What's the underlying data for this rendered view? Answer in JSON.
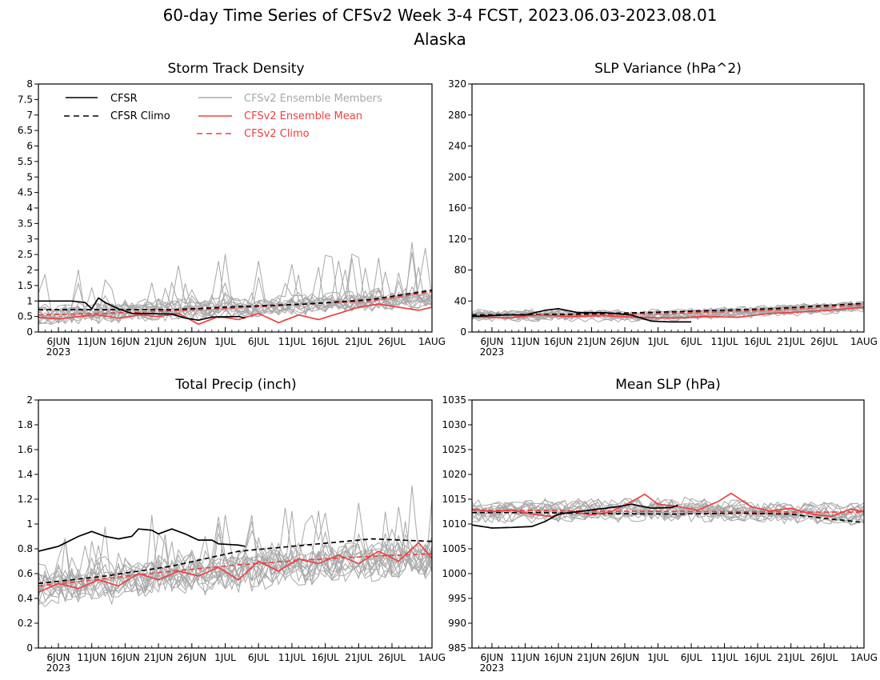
{
  "figure": {
    "title_line1": "60-day Time Series of CFSv2 Week 3-4 FCST, 2023.06.03-2023.08.01",
    "title_line2": "Alaska"
  },
  "colors": {
    "cfsr": "#000000",
    "ensemble_members": "#a8a8a8",
    "ensemble_mean": "#ee4040",
    "cfsv2_climo": "#ee4040",
    "axis": "#000000"
  },
  "legend": {
    "placement": "top-left of Storm Track Density panel",
    "entries": [
      {
        "label": "CFSR",
        "style": "solid",
        "color": "#000000"
      },
      {
        "label": "CFSR Climo",
        "style": "dashed",
        "color": "#000000"
      },
      {
        "label": "CFSv2 Ensemble Members",
        "style": "solid",
        "color": "#a8a8a8"
      },
      {
        "label": "CFSv2 Ensemble Mean",
        "style": "solid",
        "color": "#ee4040"
      },
      {
        "label": "CFSv2 Climo",
        "style": "dashed",
        "color": "#ee4040"
      }
    ]
  },
  "chart_data": [
    {
      "type": "line",
      "title": "Storm Track Density",
      "x_range": [
        "2023-06-03",
        "2023-08-01"
      ],
      "x_tick_labels": [
        "6JUN",
        "11JUN",
        "16JUN",
        "21JUN",
        "26JUN",
        "1JUL",
        "6JUL",
        "11JUL",
        "16JUL",
        "21JUL",
        "26JUL",
        "1AUG"
      ],
      "x_tick_days": [
        3,
        8,
        13,
        18,
        23,
        28,
        33,
        38,
        43,
        48,
        53,
        59
      ],
      "year_label": "2023",
      "ylim": [
        0,
        8
      ],
      "y_ticks": [
        "0",
        "0.5",
        "1",
        "1.5",
        "2",
        "2.5",
        "3",
        "3.5",
        "4",
        "4.5",
        "5",
        "5.5",
        "6",
        "6.5",
        "7",
        "7.5",
        "8"
      ],
      "grid": false,
      "member_count": 16,
      "series": [
        {
          "name": "CFSR",
          "knots": [
            [
              0,
              1.0
            ],
            [
              5,
              1.0
            ],
            [
              7,
              0.95
            ],
            [
              8,
              0.75
            ],
            [
              9,
              1.1
            ],
            [
              10,
              0.95
            ],
            [
              12,
              0.75
            ],
            [
              14,
              0.6
            ],
            [
              20,
              0.58
            ],
            [
              22,
              0.45
            ],
            [
              24,
              0.38
            ],
            [
              26,
              0.48
            ],
            [
              30,
              0.5
            ],
            [
              31,
              0.45
            ]
          ]
        },
        {
          "name": "CFSR Climo",
          "knots": [
            [
              0,
              0.72
            ],
            [
              10,
              0.72
            ],
            [
              20,
              0.72
            ],
            [
              30,
              0.82
            ],
            [
              40,
              0.9
            ],
            [
              50,
              1.05
            ],
            [
              59,
              1.35
            ]
          ]
        },
        {
          "name": "CFSv2 Ensemble Mean",
          "knots": [
            [
              0,
              0.48
            ],
            [
              3,
              0.42
            ],
            [
              6,
              0.5
            ],
            [
              9,
              0.55
            ],
            [
              12,
              0.45
            ],
            [
              15,
              0.55
            ],
            [
              18,
              0.5
            ],
            [
              21,
              0.6
            ],
            [
              24,
              0.25
            ],
            [
              27,
              0.5
            ],
            [
              30,
              0.4
            ],
            [
              33,
              0.6
            ],
            [
              36,
              0.3
            ],
            [
              39,
              0.55
            ],
            [
              42,
              0.4
            ],
            [
              45,
              0.6
            ],
            [
              48,
              0.8
            ],
            [
              51,
              0.9
            ],
            [
              54,
              0.8
            ],
            [
              57,
              0.7
            ],
            [
              59,
              0.8
            ]
          ]
        },
        {
          "name": "CFSv2 Climo",
          "knots": [
            [
              0,
              0.55
            ],
            [
              10,
              0.6
            ],
            [
              20,
              0.68
            ],
            [
              30,
              0.78
            ],
            [
              40,
              0.9
            ],
            [
              50,
              1.0
            ],
            [
              59,
              1.3
            ]
          ]
        }
      ],
      "member_envelope": {
        "knots": [
          [
            0,
            0.55
          ],
          [
            30,
            0.78
          ],
          [
            59,
            1.1
          ]
        ],
        "spread": 0.55
      }
    },
    {
      "type": "line",
      "title": "SLP Variance (hPa^2)",
      "x_range": [
        "2023-06-03",
        "2023-08-01"
      ],
      "x_tick_labels": [
        "6JUN",
        "11JUN",
        "16JUN",
        "21JUN",
        "26JUN",
        "1JUL",
        "6JUL",
        "11JUL",
        "16JUL",
        "21JUL",
        "26JUL",
        "1AUG"
      ],
      "x_tick_days": [
        3,
        8,
        13,
        18,
        23,
        28,
        33,
        38,
        43,
        48,
        53,
        59
      ],
      "year_label": "2023",
      "ylim": [
        0,
        320
      ],
      "y_ticks": [
        "0",
        "40",
        "80",
        "120",
        "160",
        "200",
        "240",
        "280",
        "320"
      ],
      "grid": false,
      "member_count": 16,
      "series": [
        {
          "name": "CFSR",
          "knots": [
            [
              0,
              20
            ],
            [
              5,
              22
            ],
            [
              8,
              22
            ],
            [
              11,
              28
            ],
            [
              13,
              30
            ],
            [
              16,
              25
            ],
            [
              20,
              25
            ],
            [
              24,
              22
            ],
            [
              27,
              14
            ],
            [
              30,
              13
            ],
            [
              33,
              13
            ]
          ]
        },
        {
          "name": "CFSR Climo",
          "knots": [
            [
              0,
              22
            ],
            [
              15,
              23
            ],
            [
              30,
              26
            ],
            [
              45,
              30
            ],
            [
              59,
              37
            ]
          ]
        },
        {
          "name": "CFSv2 Ensemble Mean",
          "knots": [
            [
              0,
              20
            ],
            [
              5,
              18
            ],
            [
              10,
              22
            ],
            [
              15,
              20
            ],
            [
              20,
              21
            ],
            [
              25,
              19
            ],
            [
              30,
              18
            ],
            [
              35,
              20
            ],
            [
              40,
              19
            ],
            [
              45,
              24
            ],
            [
              50,
              26
            ],
            [
              55,
              29
            ],
            [
              59,
              32
            ]
          ]
        },
        {
          "name": "CFSv2 Climo",
          "knots": [
            [
              0,
              22
            ],
            [
              15,
              22
            ],
            [
              30,
              24
            ],
            [
              45,
              28
            ],
            [
              59,
              35
            ]
          ]
        }
      ],
      "member_envelope": {
        "knots": [
          [
            0,
            21
          ],
          [
            30,
            21
          ],
          [
            59,
            33
          ]
        ],
        "spread": 12
      }
    },
    {
      "type": "line",
      "title": "Total Precip (inch)",
      "x_range": [
        "2023-06-03",
        "2023-08-01"
      ],
      "x_tick_labels": [
        "6JUN",
        "11JUN",
        "16JUN",
        "21JUN",
        "26JUN",
        "1JUL",
        "6JUL",
        "11JUL",
        "16JUL",
        "21JUL",
        "26JUL",
        "1AUG"
      ],
      "x_tick_days": [
        3,
        8,
        13,
        18,
        23,
        28,
        33,
        38,
        43,
        48,
        53,
        59
      ],
      "year_label": "2023",
      "ylim": [
        0,
        2
      ],
      "y_ticks": [
        "0",
        "0.2",
        "0.4",
        "0.6",
        "0.8",
        "1",
        "1.2",
        "1.4",
        "1.6",
        "1.8",
        "2"
      ],
      "grid": false,
      "member_count": 16,
      "series": [
        {
          "name": "CFSR",
          "knots": [
            [
              0,
              0.78
            ],
            [
              3,
              0.82
            ],
            [
              6,
              0.9
            ],
            [
              8,
              0.94
            ],
            [
              10,
              0.9
            ],
            [
              12,
              0.88
            ],
            [
              14,
              0.9
            ],
            [
              15,
              0.96
            ],
            [
              17,
              0.95
            ],
            [
              18,
              0.92
            ],
            [
              20,
              0.96
            ],
            [
              22,
              0.92
            ],
            [
              24,
              0.87
            ],
            [
              26,
              0.87
            ],
            [
              27,
              0.84
            ],
            [
              30,
              0.83
            ],
            [
              31,
              0.82
            ]
          ]
        },
        {
          "name": "CFSR Climo",
          "knots": [
            [
              0,
              0.52
            ],
            [
              10,
              0.58
            ],
            [
              20,
              0.66
            ],
            [
              25,
              0.72
            ],
            [
              30,
              0.78
            ],
            [
              40,
              0.83
            ],
            [
              50,
              0.88
            ],
            [
              59,
              0.86
            ]
          ]
        },
        {
          "name": "CFSv2 Ensemble Mean",
          "knots": [
            [
              0,
              0.45
            ],
            [
              3,
              0.52
            ],
            [
              6,
              0.48
            ],
            [
              9,
              0.55
            ],
            [
              12,
              0.5
            ],
            [
              15,
              0.6
            ],
            [
              18,
              0.55
            ],
            [
              21,
              0.62
            ],
            [
              24,
              0.58
            ],
            [
              27,
              0.65
            ],
            [
              30,
              0.55
            ],
            [
              33,
              0.7
            ],
            [
              36,
              0.62
            ],
            [
              39,
              0.72
            ],
            [
              42,
              0.68
            ],
            [
              45,
              0.75
            ],
            [
              48,
              0.68
            ],
            [
              51,
              0.78
            ],
            [
              54,
              0.7
            ],
            [
              57,
              0.85
            ],
            [
              59,
              0.72
            ]
          ]
        },
        {
          "name": "CFSv2 Climo",
          "knots": [
            [
              0,
              0.5
            ],
            [
              10,
              0.56
            ],
            [
              20,
              0.62
            ],
            [
              30,
              0.67
            ],
            [
              40,
              0.71
            ],
            [
              50,
              0.74
            ],
            [
              59,
              0.76
            ]
          ]
        }
      ],
      "member_envelope": {
        "knots": [
          [
            0,
            0.48
          ],
          [
            20,
            0.58
          ],
          [
            40,
            0.68
          ],
          [
            59,
            0.72
          ]
        ],
        "spread": 0.28
      }
    },
    {
      "type": "line",
      "title": "Mean SLP (hPa)",
      "x_range": [
        "2023-06-03",
        "2023-08-01"
      ],
      "x_tick_labels": [
        "6JUN",
        "11JUN",
        "16JUN",
        "21JUN",
        "26JUN",
        "1JUL",
        "6JUL",
        "11JUL",
        "16JUL",
        "21JUL",
        "26JUL",
        "1AUG"
      ],
      "x_tick_days": [
        3,
        8,
        13,
        18,
        23,
        28,
        33,
        38,
        43,
        48,
        53,
        59
      ],
      "year_label": "2023",
      "ylim": [
        985,
        1035
      ],
      "y_ticks": [
        "985",
        "990",
        "995",
        "1000",
        "1005",
        "1010",
        "1015",
        "1020",
        "1025",
        "1030",
        "1035"
      ],
      "grid": false,
      "member_count": 16,
      "series": [
        {
          "name": "CFSR",
          "knots": [
            [
              0,
              1009.8
            ],
            [
              3,
              1009.2
            ],
            [
              6,
              1009.3
            ],
            [
              9,
              1009.5
            ],
            [
              11,
              1010.5
            ],
            [
              13,
              1012.0
            ],
            [
              16,
              1012.5
            ],
            [
              19,
              1013.0
            ],
            [
              22,
              1013.5
            ],
            [
              24,
              1014.0
            ],
            [
              27,
              1013.2
            ],
            [
              30,
              1013.3
            ],
            [
              31,
              1013.8
            ]
          ]
        },
        {
          "name": "CFSR Climo",
          "knots": [
            [
              0,
              1012.3
            ],
            [
              10,
              1012.3
            ],
            [
              20,
              1012.1
            ],
            [
              30,
              1012.0
            ],
            [
              40,
              1012.2
            ],
            [
              48,
              1012.0
            ],
            [
              54,
              1011.0
            ],
            [
              59,
              1010.3
            ]
          ]
        },
        {
          "name": "CFSv2 Ensemble Mean",
          "knots": [
            [
              0,
              1013.0
            ],
            [
              3,
              1012.5
            ],
            [
              6,
              1012.8
            ],
            [
              9,
              1012.0
            ],
            [
              12,
              1011.5
            ],
            [
              15,
              1012.5
            ],
            [
              18,
              1011.8
            ],
            [
              21,
              1012.5
            ],
            [
              24,
              1014.5
            ],
            [
              26,
              1016.0
            ],
            [
              28,
              1014.0
            ],
            [
              31,
              1013.5
            ],
            [
              34,
              1012.8
            ],
            [
              37,
              1014.5
            ],
            [
              39,
              1016.2
            ],
            [
              42,
              1013.5
            ],
            [
              45,
              1012.6
            ],
            [
              48,
              1013.2
            ],
            [
              51,
              1012.0
            ],
            [
              54,
              1011.5
            ],
            [
              57,
              1013.0
            ],
            [
              59,
              1012.5
            ]
          ]
        },
        {
          "name": "CFSv2 Climo",
          "knots": [
            [
              0,
              1012.8
            ],
            [
              20,
              1012.6
            ],
            [
              40,
              1012.5
            ],
            [
              50,
              1012.4
            ],
            [
              59,
              1012.4
            ]
          ]
        }
      ],
      "member_envelope": {
        "knots": [
          [
            0,
            1012.5
          ],
          [
            30,
            1013.0
          ],
          [
            59,
            1012.0
          ]
        ],
        "spread": 3.5
      }
    }
  ]
}
